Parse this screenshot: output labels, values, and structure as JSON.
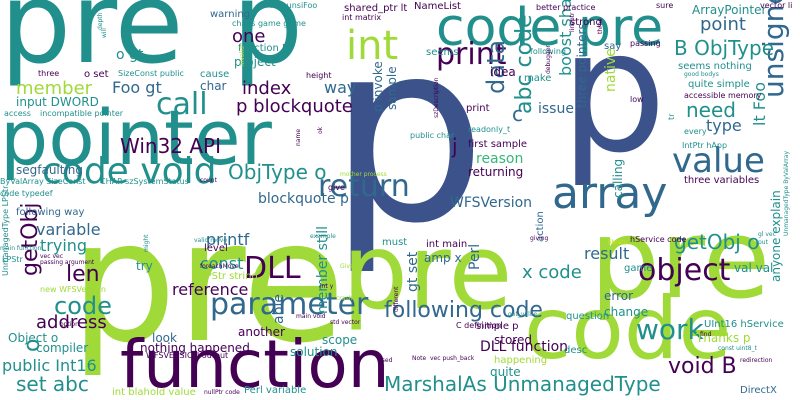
{
  "palette": {
    "purple": "#440154",
    "indigo": "#3b528b",
    "blue": "#31688e",
    "teal": "#21908d",
    "green": "#35b779",
    "lime": "#a0da39",
    "yellow": "#d2e21b"
  },
  "words": {
    "pre_large_top": "pre",
    "p_large_top": "p",
    "pointer": "pointer",
    "p_center": "p",
    "p_right": "p",
    "pre_bottom_left": "pre",
    "pre_right": "pre",
    "code_bottom": "code",
    "pre_bottom": "pre",
    "function": "function",
    "code_pre": "code pre",
    "array": "array",
    "code_void": "code void",
    "int_top": "int",
    "print": "print",
    "return": "return",
    "value": "value",
    "call": "call",
    "data": "data",
    "DLL": "DLL",
    "parameter": "parameter",
    "object": "object",
    "work": "work",
    "len": "len",
    "code_left": "code",
    "Win32_API": "Win32 API",
    "ObjType_o": "ObjType o",
    "index": "index",
    "p_blockquote": "p blockquote",
    "member": "member",
    "Foo_gt": "Foo gt",
    "one": "one",
    "B_ObjType": "B ObjType",
    "point": "point",
    "unsigned_long": "unsigned long",
    "need": "need",
    "type": "type",
    "result": "result",
    "getObj_o": "getObj o",
    "set_abc": "set abc",
    "void_B": "void B",
    "MarshalAs": "MarshalAs UnmanagedType",
    "following_code": "following code",
    "reference": "reference",
    "x_code": "x code",
    "printf": "printf",
    "variable": "variable",
    "trying": "trying",
    "const": "const",
    "address": "address",
    "public_Int16": "public Int16",
    "int_blah": "int blah",
    "old_value": "old value",
    "Perl_variable": "Perl variable",
    "segfaulting": "segfaulting",
    "blockquote_p": "blockquote p",
    "WFSVersion": "WFSVersion",
    "three_variables": "three variables",
    "int_main": "int main",
    "amp_x": "amp x",
    "issue": "issue",
    "reason": "reason",
    "abc_code": "abc code",
    "boost_shared_ptr": "boost shared_ptr",
    "j": "j",
    "c_mid": "c",
    "input_DWORD": "input DWORD",
    "way": "way",
    "project": "project",
    "function_B": "function B",
    "o_gt": "o gt",
    "o_set": "o set",
    "ArrayPointer": "ArrayPointer",
    "NameList": "NameList",
    "shared_ptr_lt": "shared_ptr lt",
    "idea": "idea",
    "first_sample": "first sample",
    "seems_nothing": "seems nothing",
    "quite_simple": "quite simple",
    "accessible_memory": "accessible memory",
    "Thanks_p": "Thanks p",
    "change": "change",
    "error": "error",
    "stored": "stored",
    "DLL_function": "DLL function",
    "happening": "happening",
    "quite": "quite",
    "desc": "desc",
    "solution": "solution",
    "scope": "scope",
    "member_still": "member still",
    "nothing_happened": "nothing happened",
    "another": "another",
    "able": "able",
    "look": "look",
    "compiler": "compiler",
    "Object_o": "Object o",
    "getObj_left": "getObj",
    "o_left": "o",
    "simple_p": "simple p",
    "val_val": "val val",
    "UInt16_hService": "UInt16 hService",
    "game": "game",
    "hService_code": "hService code",
    "directx": "DirectX",
    "Perl": "Perl",
    "gt_set": "gt set",
    "cause": "cause",
    "warning": "warning",
    "char": "char",
    "say": "say",
    "native": "native",
    "make": "make",
    "returning": "returning",
    "action": "action",
    "calling": "calling",
    "must": "must",
    "level": "level",
    "try": "try",
    "p_invoke": "p invoke",
    "sample": "sample",
    "three_pointers": "three pointers",
    "LPStr_string": "LPStr string",
    "WFSVERSION_output": "WFSVERSION output",
    "C_definition": "C definition",
    "question": "question",
    "anyone_explain": "anyone explain",
    "lt_Foo": "lt Foo",
    "IntPtr_hApp": "IntPtr hApp",
    "seems": "seems",
    "print_small": "print",
    "Foo_unsiFoo": "Foo unsiFoo",
    "chaos_game_game": "chaos game game",
    "int_matrix": "int matrix",
    "better_practice": "better practice",
    "sure": "sure",
    "strong": "strong",
    "vector_li": "vector li",
    "lineptr": "lineptr",
    "following_small": "following",
    "passing": "passing",
    "good_bodys": "good bodys",
    "low": "low",
    "debugger": "debugger",
    "tr": "tr",
    "every": "every",
    "SizeConst_public": "SizeConst public",
    "height": "height",
    "three": "three",
    "access": "access",
    "incompatible_pointer": "incompatible pointer",
    "ByValArray_SizeConst": "ByValArray SizeConst",
    "CHAR_szSystemStatus": "CHAR szSystemStatus",
    "readonly_t": "readonly_t",
    "public_char": "public char",
    "szDescription": "szDescription",
    "mother_process": "mother process",
    "code_typedef": "code typedef",
    "count": "count",
    "give": "give",
    "valid_move": "valid move",
    "example": "example",
    "following_way": "following way",
    "LPStr": "LPStr",
    "vec_vec": "vec vec",
    "passing_argument": "passing argument",
    "foreachMove": "foreachMove",
    "new_WFSVersion": "new WFSVersion",
    "option": "option",
    "main_function": "main function",
    "int_y": "int y",
    "Given": "Given",
    "crash": "crash",
    "main_void": "main void",
    "std_vector": "std vector",
    "get_value": "get_value",
    "different": "different",
    "used": "used",
    "Note": "Note",
    "vec_push_back": "vec push_back",
    "nullPtr_code": "nullPtr code",
    "giving": "giving",
    "library": "library",
    "gl_vec": "gl vec",
    "put": "put",
    "find": "find",
    "const_uint8_t": "const uint8_t",
    "UnmanagedType_ByValArray": "UnmanagedType ByValArray",
    "UnmanagedType_LPStr": "UnmanagedType LPStr",
    "redirection": "redirection",
    "might": "might",
    "depth": "depth",
    "will": "will",
    "ok": "ok",
    "name": "name",
    "invalid": "invalid"
  }
}
